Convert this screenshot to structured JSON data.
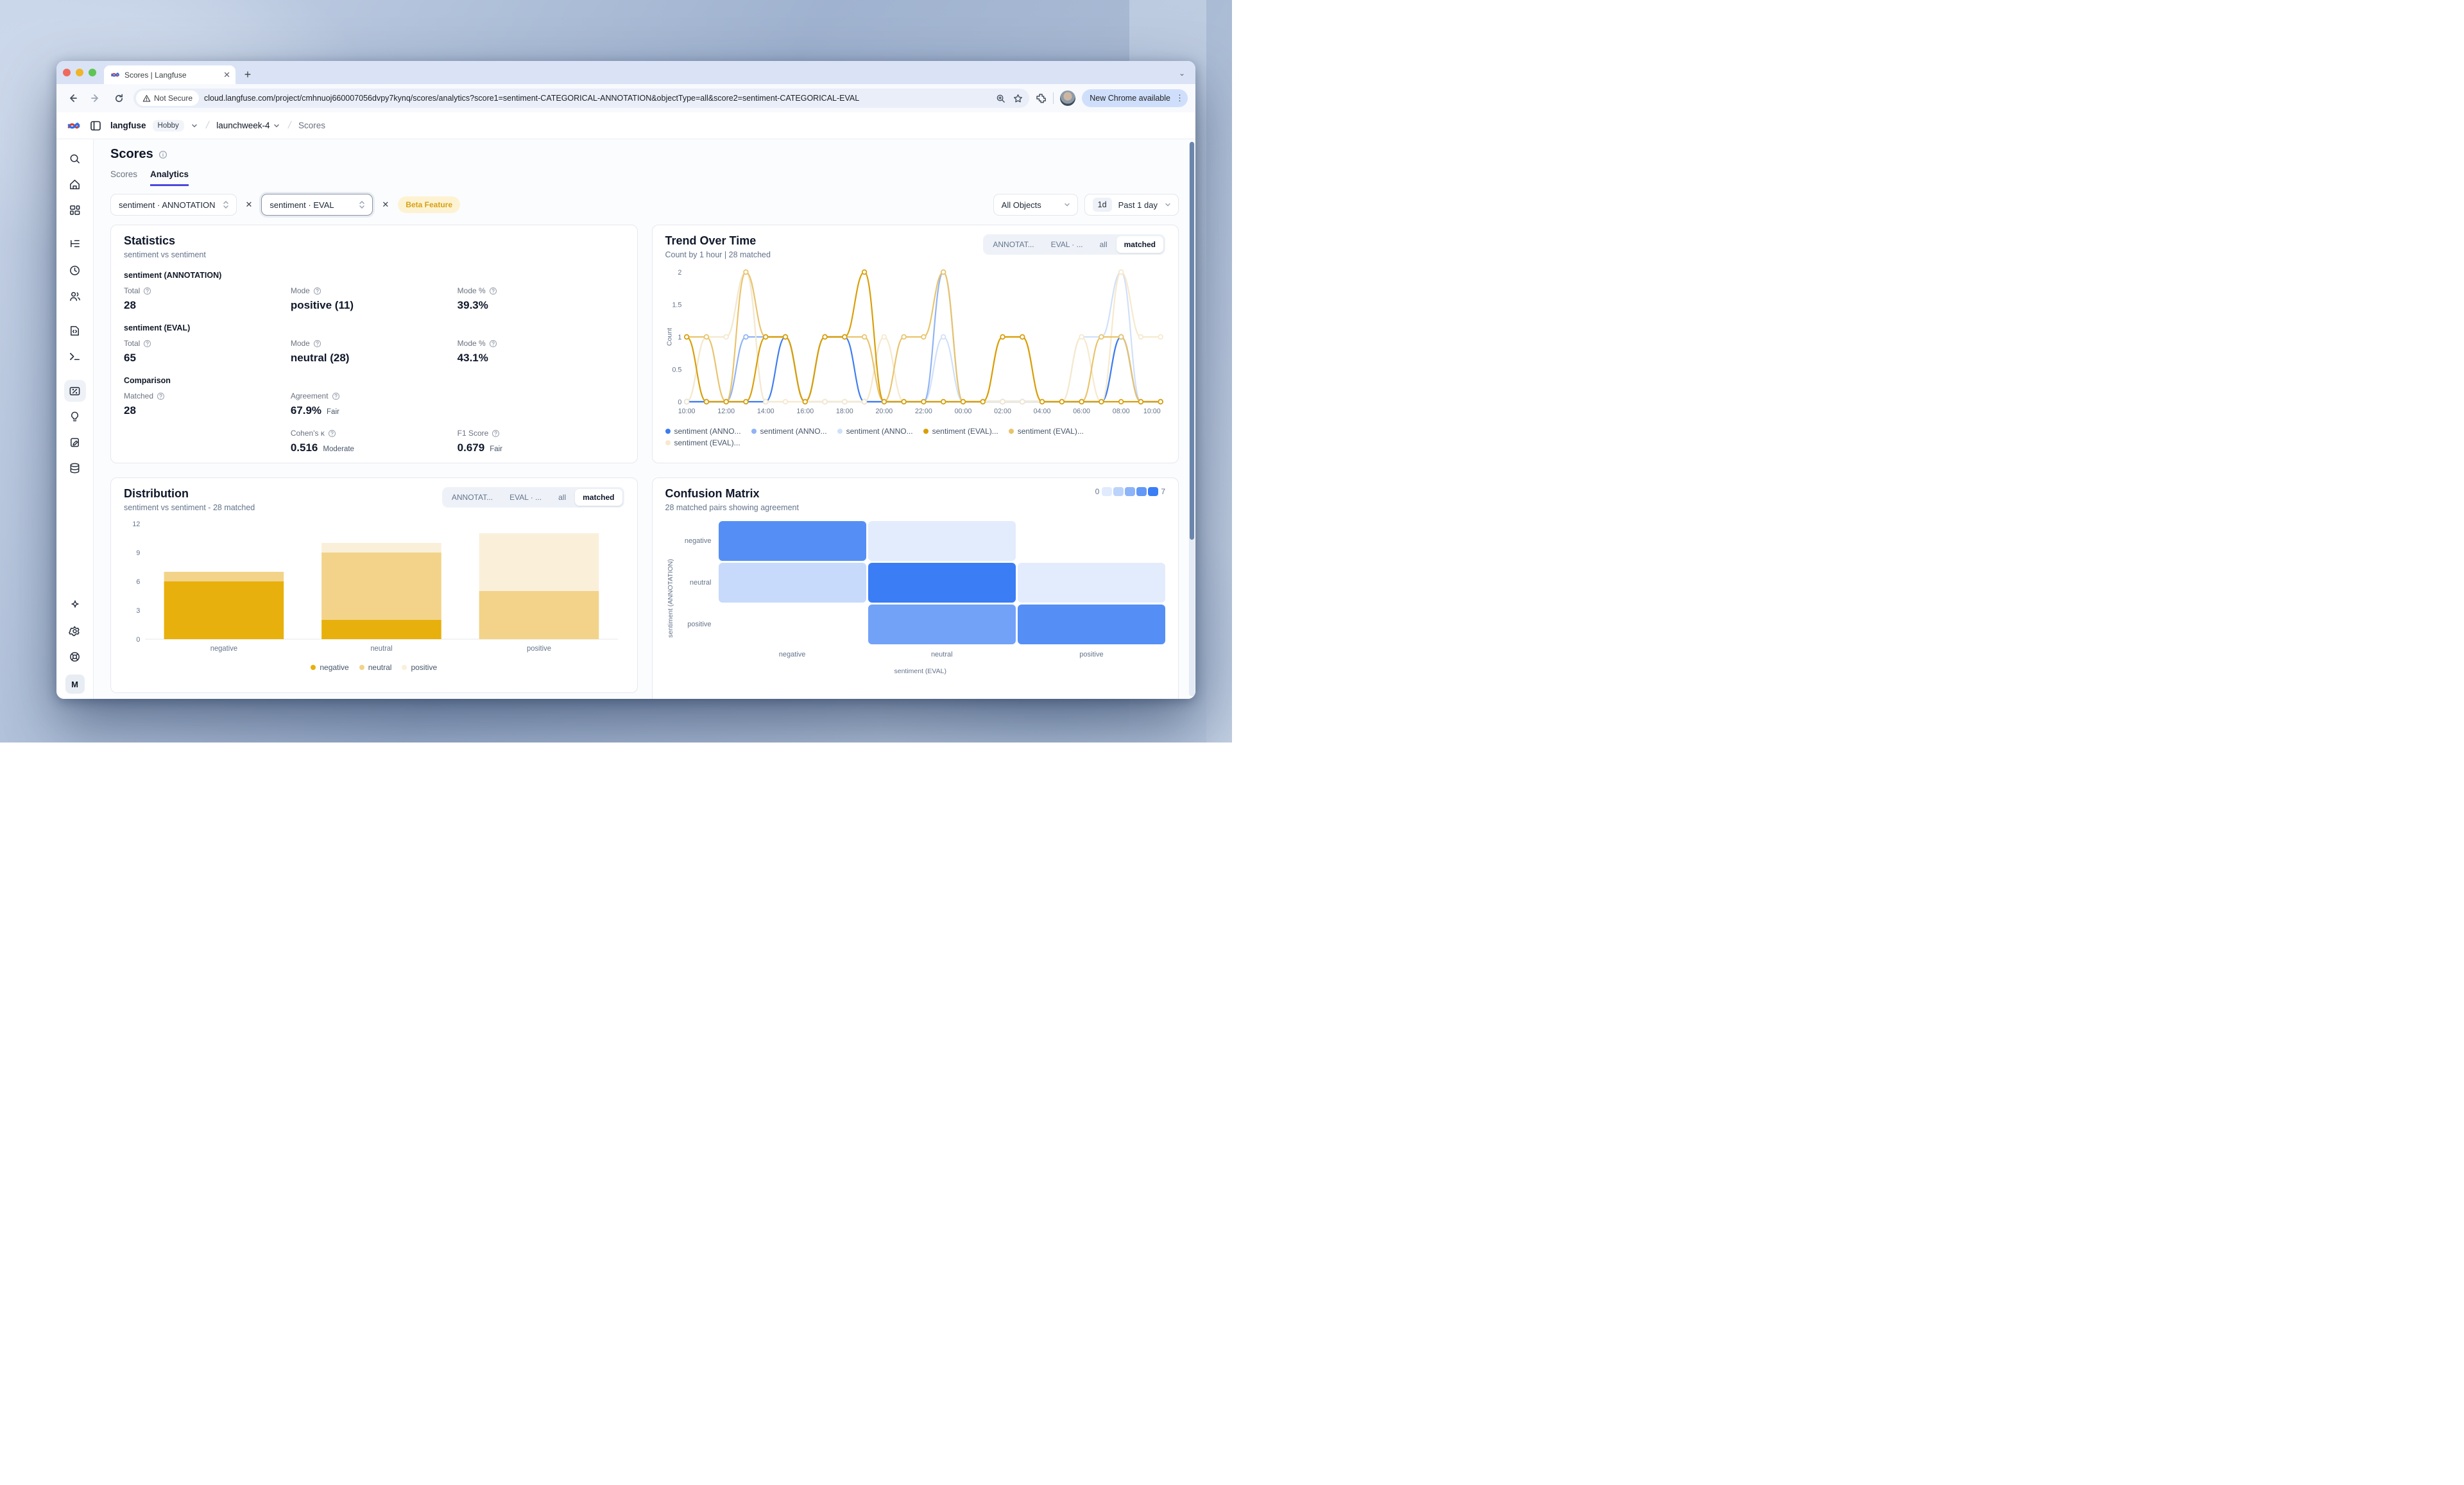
{
  "browser": {
    "tab_title": "Scores | Langfuse",
    "new_tab_label": "+",
    "close_tab_label": "✕",
    "not_secure_label": "Not Secure",
    "url": "cloud.langfuse.com/project/cmhnuoj660007056dvpy7kynq/scores/analytics?score1=sentiment-CATEGORICAL-ANNOTATION&objectType=all&score2=sentiment-CATEGORICAL-EVAL",
    "update_button": "New Chrome available"
  },
  "app_header": {
    "org": "langfuse",
    "plan_badge": "Hobby",
    "project": "launchweek-4",
    "page": "Scores"
  },
  "sidebar": {
    "items": [
      "search",
      "home",
      "dashboards",
      "tracing",
      "sessions",
      "users",
      "prompts",
      "playground",
      "scores",
      "evaluators",
      "annotation",
      "datasets"
    ],
    "active_item": "scores",
    "bottom_items": [
      "ai-sparkle",
      "settings",
      "support"
    ],
    "avatar_initial": "M"
  },
  "page": {
    "title": "Scores",
    "tabs": [
      {
        "label": "Scores",
        "active": false
      },
      {
        "label": "Analytics",
        "active": true
      }
    ]
  },
  "filters": {
    "score1": "sentiment · ANNOTATION",
    "score2": "sentiment · EVAL",
    "remove_label": "✕",
    "beta_badge": "Beta Feature",
    "object_filter": "All Objects",
    "time_range_short": "1d",
    "time_range_label": "Past 1 day"
  },
  "statistics": {
    "title": "Statistics",
    "subtitle": "sentiment vs sentiment",
    "groups": [
      {
        "label": "sentiment (ANNOTATION)",
        "stats": [
          {
            "label": "Total",
            "value": "28",
            "col": 1,
            "row": 1
          },
          {
            "label": "Mode",
            "value": "positive (11)",
            "col": 2,
            "row": 1
          },
          {
            "label": "Mode %",
            "value": "39.3%",
            "col": 3,
            "row": 1
          }
        ]
      },
      {
        "label": "sentiment (EVAL)",
        "stats": [
          {
            "label": "Total",
            "value": "65",
            "col": 1,
            "row": 1
          },
          {
            "label": "Mode",
            "value": "neutral (28)",
            "col": 2,
            "row": 1
          },
          {
            "label": "Mode %",
            "value": "43.1%",
            "col": 3,
            "row": 1
          }
        ]
      },
      {
        "label": "Comparison",
        "stats": [
          {
            "label": "Matched",
            "value": "28",
            "col": 1,
            "row": 1
          },
          {
            "label": "Agreement",
            "value": "67.9%",
            "qualifier": "Fair",
            "col": 2,
            "row": 1
          },
          {
            "label": "Cohen's κ",
            "value": "0.516",
            "qualifier": "Moderate",
            "col": 2,
            "row": 2
          },
          {
            "label": "F1 Score",
            "value": "0.679",
            "qualifier": "Fair",
            "col": 3,
            "row": 2
          }
        ]
      }
    ]
  },
  "trend": {
    "title": "Trend Over Time",
    "subtitle": "Count by 1 hour | 28 matched",
    "toggles": [
      "ANNOTAT...",
      "EVAL · ...",
      "all",
      "matched"
    ],
    "active_toggle": "matched"
  },
  "distribution": {
    "title": "Distribution",
    "subtitle": "sentiment vs sentiment - 28 matched",
    "toggles": [
      "ANNOTAT...",
      "EVAL · ...",
      "all",
      "matched"
    ],
    "active_toggle": "matched"
  },
  "confusion": {
    "title": "Confusion Matrix",
    "subtitle": "28 matched pairs showing agreement",
    "scale_min": "0",
    "scale_max": "7",
    "scale_swatch_alphas": [
      0.15,
      0.32,
      0.55,
      0.75,
      0.95
    ]
  },
  "chart_data": [
    {
      "type": "line",
      "title": "Trend Over Time",
      "ylabel": "Count",
      "ylim": [
        0,
        2
      ],
      "yticks": [
        0,
        0.5,
        1,
        1.5,
        2
      ],
      "x": [
        "10:00",
        "11:00",
        "12:00",
        "13:00",
        "14:00",
        "15:00",
        "16:00",
        "17:00",
        "18:00",
        "19:00",
        "20:00",
        "21:00",
        "22:00",
        "23:00",
        "00:00",
        "01:00",
        "02:00",
        "03:00",
        "04:00",
        "05:00",
        "06:00",
        "07:00",
        "08:00",
        "09:00",
        "10:00"
      ],
      "x_tick_every": 2,
      "legend_position": "bottom",
      "grid": false,
      "series": [
        {
          "name": "sentiment (ANNO...",
          "color": "#3d7bf0",
          "values": [
            0,
            0,
            0,
            0,
            0,
            1,
            0,
            1,
            1,
            0,
            0,
            0,
            0,
            0,
            0,
            0,
            0,
            0,
            0,
            0,
            0,
            0,
            1,
            0,
            0
          ]
        },
        {
          "name": "sentiment (ANNO...",
          "color": "#8fb3f4",
          "values": [
            0,
            0,
            0,
            1,
            1,
            1,
            0,
            0,
            0,
            0,
            0,
            0,
            0,
            2,
            0,
            0,
            0,
            0,
            0,
            0,
            0,
            0,
            1,
            0,
            0
          ]
        },
        {
          "name": "sentiment (ANNO...",
          "color": "#cfe0fa",
          "values": [
            0,
            1,
            1,
            2,
            0,
            0,
            0,
            0,
            0,
            0,
            0,
            0,
            0,
            1,
            0,
            0,
            0,
            0,
            0,
            0,
            1,
            1,
            2,
            0,
            0
          ]
        },
        {
          "name": "sentiment (EVAL)...",
          "color": "#d99e06",
          "values": [
            1,
            0,
            0,
            0,
            1,
            1,
            0,
            1,
            1,
            2,
            0,
            0,
            0,
            0,
            0,
            0,
            1,
            1,
            0,
            0,
            0,
            0,
            0,
            0,
            0
          ]
        },
        {
          "name": "sentiment (EVAL)...",
          "color": "#e9c36b",
          "values": [
            1,
            1,
            0,
            2,
            1,
            1,
            0,
            1,
            1,
            1,
            0,
            1,
            1,
            2,
            0,
            0,
            1,
            1,
            0,
            0,
            0,
            1,
            1,
            0,
            0
          ]
        },
        {
          "name": "sentiment (EVAL)...",
          "color": "#f6e9cc",
          "values": [
            0,
            1,
            1,
            2,
            0,
            0,
            0,
            0,
            0,
            0,
            1,
            0,
            0,
            0,
            0,
            0,
            0,
            0,
            0,
            0,
            1,
            0,
            2,
            1,
            1
          ]
        }
      ]
    },
    {
      "type": "bar",
      "stacked": true,
      "title": "Distribution",
      "categories": [
        "negative",
        "neutral",
        "positive"
      ],
      "ylim": [
        0,
        12
      ],
      "yticks": [
        0,
        3,
        6,
        9,
        12
      ],
      "legend_position": "bottom-center",
      "series": [
        {
          "name": "negative",
          "color": "#e8b00c",
          "values": [
            6,
            2,
            0
          ]
        },
        {
          "name": "neutral",
          "color": "#f2d389",
          "values": [
            1,
            7,
            5
          ]
        },
        {
          "name": "positive",
          "color": "#faf0da",
          "values": [
            0,
            1,
            6
          ]
        }
      ]
    },
    {
      "type": "heatmap",
      "title": "Confusion Matrix",
      "rows": [
        "negative",
        "neutral",
        "positive"
      ],
      "cols": [
        "negative",
        "neutral",
        "positive"
      ],
      "values": [
        [
          6,
          1,
          0
        ],
        [
          2,
          7,
          1
        ],
        [
          0,
          5,
          6
        ]
      ],
      "row_axis_label": "sentiment (ANNOTATION)",
      "col_axis_label": "sentiment (EVAL)",
      "scale": [
        0,
        7
      ],
      "base_color_rgb": [
        47,
        118,
        244
      ]
    }
  ]
}
